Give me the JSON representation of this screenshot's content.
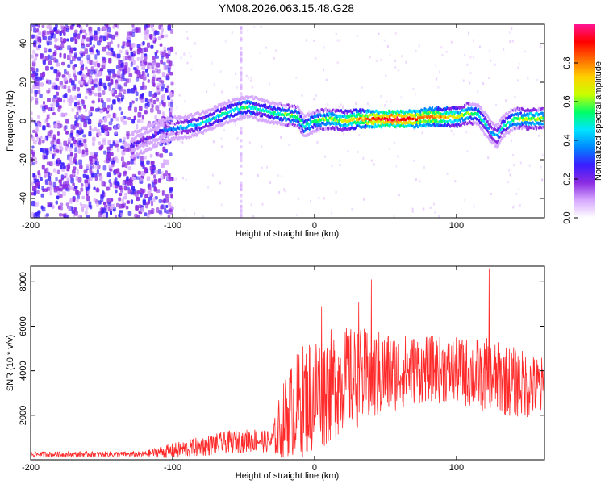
{
  "title": "YM08.2026.063.15.48.G28",
  "colors": {
    "snr_line": "#ff2a2a",
    "colormap": [
      "#ffffff",
      "#d6a8ff",
      "#8a2be2",
      "#3a1dff",
      "#0088ff",
      "#00e5ff",
      "#00ff66",
      "#c8ff00",
      "#ffd000",
      "#ff6a00",
      "#ff0000",
      "#ff1493"
    ]
  },
  "chart_data": [
    {
      "type": "heatmap",
      "panel": "spectrogram",
      "xlabel": "Height of straight line (km)",
      "ylabel": "Frequency (Hz)",
      "xlim": [
        -200,
        162
      ],
      "ylim": [
        -50,
        50
      ],
      "xticks": [
        "-200",
        "-100",
        "0",
        "100"
      ],
      "yticks": [
        "-40",
        "-20",
        "0",
        "20",
        "40"
      ],
      "colorbar": {
        "label": "Normalized spectral amplitude",
        "range": [
          0,
          1
        ],
        "ticks": [
          "0.0",
          "0.2",
          "0.4",
          "0.6",
          "0.8"
        ]
      },
      "signal_track": {
        "x": [
          -130,
          -125,
          -115,
          -108,
          -100,
          -90,
          -80,
          -70,
          -60,
          -55,
          -50,
          -45,
          -40,
          -30,
          -20,
          -12,
          -8,
          0,
          10,
          20,
          30,
          40,
          50,
          60,
          70,
          80,
          90,
          100,
          108,
          115,
          120,
          124,
          128,
          132,
          140,
          150,
          162
        ],
        "frequency": [
          -13,
          -11,
          -8,
          -5,
          -4,
          -3,
          -1,
          2,
          5,
          6,
          7,
          7,
          6,
          4,
          3,
          2,
          -3,
          0,
          1,
          0,
          1,
          1,
          1,
          1,
          1,
          2,
          2,
          2,
          4,
          3,
          -2,
          -6,
          -8,
          -3,
          1,
          1,
          1
        ],
        "amplitude": [
          0.25,
          0.2,
          0.2,
          0.3,
          0.35,
          0.4,
          0.45,
          0.45,
          0.5,
          0.5,
          0.55,
          0.5,
          0.45,
          0.5,
          0.55,
          0.55,
          0.5,
          0.55,
          0.6,
          0.65,
          0.75,
          0.85,
          0.95,
          0.95,
          0.85,
          0.8,
          0.75,
          0.65,
          0.6,
          0.5,
          0.45,
          0.4,
          0.4,
          0.45,
          0.55,
          0.6,
          0.6
        ]
      }
    },
    {
      "type": "line",
      "panel": "snr",
      "xlabel": "Height of straight line (km)",
      "ylabel": "SNR (10 * v/v)",
      "xlim": [
        -200,
        162
      ],
      "ylim": [
        0,
        8700
      ],
      "xticks": [
        "-200",
        "-100",
        "0",
        "100"
      ],
      "yticks": [
        "2000",
        "4000",
        "6000",
        "8000"
      ],
      "envelope": {
        "x": [
          -200,
          -120,
          -110,
          -100,
          -80,
          -60,
          -40,
          -30,
          -25,
          -20,
          -10,
          0,
          10,
          20,
          40,
          60,
          80,
          100,
          120,
          140,
          162
        ],
        "mean": [
          250,
          250,
          350,
          400,
          600,
          800,
          900,
          800,
          1400,
          2000,
          2600,
          3000,
          3300,
          3600,
          3700,
          4000,
          4100,
          4000,
          3800,
          3500,
          3200
        ],
        "amplitude": [
          120,
          130,
          250,
          350,
          450,
          500,
          550,
          500,
          1400,
          1900,
          2500,
          2800,
          2600,
          2400,
          2200,
          1700,
          1500,
          1500,
          1700,
          1600,
          1400
        ]
      },
      "peaks": [
        {
          "x": 123,
          "y": 8600
        },
        {
          "x": 40,
          "y": 8100
        },
        {
          "x": 31,
          "y": 7100
        },
        {
          "x": 5,
          "y": 6900
        }
      ]
    }
  ]
}
